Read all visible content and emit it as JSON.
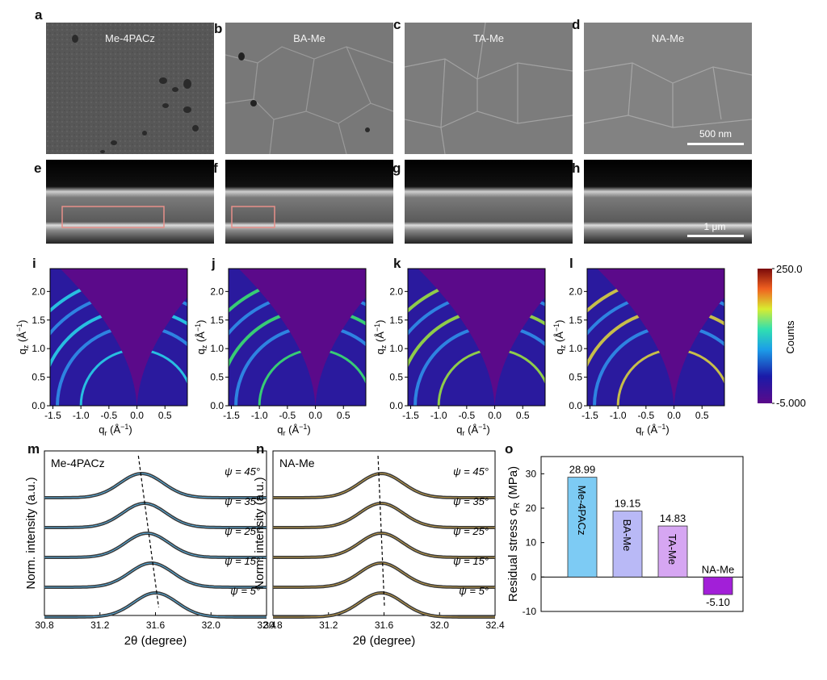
{
  "panel_letters": [
    "a",
    "b",
    "c",
    "d",
    "e",
    "f",
    "g",
    "h",
    "i",
    "j",
    "k",
    "l",
    "m",
    "n",
    "o"
  ],
  "sem_top": {
    "titles": [
      "Me-4PACz",
      "BA-Me",
      "TA-Me",
      "NA-Me"
    ],
    "scale_label": "500 nm"
  },
  "sem_cross": {
    "scale_label": "1 μm"
  },
  "giwaxs": {
    "x_label_main": "q",
    "x_label_sub": "r",
    "x_label_unit": " (Å",
    "x_label_sup": "−1",
    "x_label_close": ")",
    "y_label_main": "q",
    "y_label_sub": "z",
    "x_ticks": [
      "-1.5",
      "-1.0",
      "-0.5",
      "0.0",
      "0.5"
    ],
    "y_ticks": [
      "0.0",
      "0.5",
      "1.0",
      "1.5",
      "2.0"
    ],
    "colorbar_max": "250.0",
    "colorbar_min": "-5.000",
    "colorbar_label": "Counts",
    "colors": {
      "background": "#5b0a8a",
      "low": "#2a1a9e",
      "ring": "#24b4e8"
    }
  },
  "xrd": {
    "xlabel": "2θ (degree)",
    "ylabel": "Norm. intensity (a.u.)",
    "x_ticks": [
      "30.8",
      "31.2",
      "31.6",
      "32.0",
      "32.4"
    ],
    "psi_labels": [
      "ψ = 45°",
      "ψ = 35°",
      "ψ = 25°",
      "ψ = 15°",
      "ψ = 5°"
    ],
    "m_title": "Me-4PACz",
    "n_title": "NA-Me"
  },
  "chart_data": [
    {
      "type": "line",
      "panel": "m",
      "title": "Me-4PACz",
      "xlabel": "2θ (degree)",
      "ylabel": "Norm. intensity (a.u.)",
      "xlim": [
        30.8,
        32.4
      ],
      "series": [
        {
          "name": "ψ = 45°",
          "peak": 31.5
        },
        {
          "name": "ψ = 35°",
          "peak": 31.52
        },
        {
          "name": "ψ = 25°",
          "peak": 31.54
        },
        {
          "name": "ψ = 15°",
          "peak": 31.57
        },
        {
          "name": "ψ = 5°",
          "peak": 31.6
        }
      ]
    },
    {
      "type": "line",
      "panel": "n",
      "title": "NA-Me",
      "xlabel": "2θ (degree)",
      "ylabel": "Norm. intensity (a.u.)",
      "xlim": [
        30.8,
        32.4
      ],
      "series": [
        {
          "name": "ψ = 45°",
          "peak": 31.58
        },
        {
          "name": "ψ = 35°",
          "peak": 31.58
        },
        {
          "name": "ψ = 25°",
          "peak": 31.58
        },
        {
          "name": "ψ = 15°",
          "peak": 31.58
        },
        {
          "name": "ψ = 5°",
          "peak": 31.58
        }
      ]
    },
    {
      "type": "bar",
      "panel": "o",
      "ylabel": "Residual stress σR (MPa)",
      "ylabel_main": "Residual stress σ",
      "ylabel_sub": "R",
      "ylabel_unit": " (MPa)",
      "ylim": [
        -10,
        35
      ],
      "y_ticks": [
        "-10",
        "0",
        "10",
        "20",
        "30"
      ],
      "categories": [
        "Me-4PACz",
        "BA-Me",
        "TA-Me",
        "NA-Me"
      ],
      "values": [
        28.99,
        19.15,
        14.83,
        -5.1
      ],
      "value_labels": [
        "28.99",
        "19.15",
        "14.83",
        "-5.10"
      ],
      "colors": [
        "#7dcbf4",
        "#b9b9f6",
        "#d6a6f2",
        "#a21fd8"
      ]
    }
  ]
}
